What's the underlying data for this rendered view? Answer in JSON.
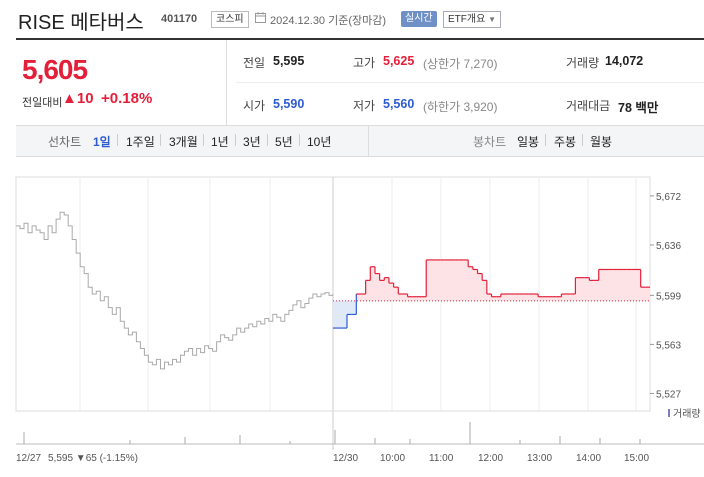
{
  "header": {
    "name": "RISE 메타버스",
    "code": "401170",
    "market": "코스피",
    "date_label": "2024.12.30 기준(장마감)",
    "realtime_label": "실시간",
    "etf_label": "ETF개요"
  },
  "quote": {
    "price": "5,605",
    "change_label": "전일대비",
    "change": "10",
    "change_pct": "+0.18%",
    "prev_close_label": "전일",
    "prev_close": "5,595",
    "high_label": "고가",
    "high": "5,625",
    "upper_limit": "(상한가 7,270)",
    "volume_label": "거래량",
    "volume": "14,072",
    "open_label": "시가",
    "open": "5,590",
    "low_label": "저가",
    "low": "5,560",
    "lower_limit": "(하한가 3,920)",
    "amount_label": "거래대금",
    "amount": "78 백만"
  },
  "toolbar": {
    "line_label": "선차트",
    "periods": [
      "1일",
      "1주일",
      "3개월",
      "1년",
      "3년",
      "5년",
      "10년"
    ],
    "candle_label": "봉차트",
    "candles": [
      "일봉",
      "주봉",
      "월봉"
    ]
  },
  "colors": {
    "up": "#e3203a",
    "down": "#2d5bd0",
    "prev": "#aaaaaa"
  },
  "chart_data": {
    "type": "line",
    "ylim": [
      5520,
      5680
    ],
    "yticks": [
      "5,672",
      "5,636",
      "5,599",
      "5,563",
      "5,527"
    ],
    "ytick_values": [
      5672,
      5636,
      5599,
      5563,
      5527
    ],
    "baseline": 5595,
    "x_labels": [
      "12/27",
      "12/30",
      "10:00",
      "11:00",
      "12:00",
      "13:00",
      "14:00",
      "15:00"
    ],
    "prev_day_label": "12/27",
    "prev_day_summary": "5,595 ▼65 (-1.15%)",
    "volume_label": "거래량",
    "prev_series": [
      5650,
      5648,
      5652,
      5645,
      5650,
      5647,
      5645,
      5640,
      5650,
      5645,
      5655,
      5660,
      5658,
      5650,
      5640,
      5630,
      5620,
      5615,
      5605,
      5600,
      5602,
      5595,
      5598,
      5590,
      5585,
      5590,
      5580,
      5575,
      5570,
      5572,
      5565,
      5560,
      5555,
      5550,
      5548,
      5552,
      5545,
      5550,
      5548,
      5552,
      5550,
      5555,
      5558,
      5560,
      5555,
      5560,
      5557,
      5562,
      5560,
      5558,
      5565,
      5570,
      5568,
      5566,
      5570,
      5575,
      5572,
      5575,
      5578,
      5576,
      5580,
      5578,
      5582,
      5580,
      5585,
      5583,
      5580,
      5585,
      5588,
      5592,
      5595,
      5590,
      5593,
      5597,
      5600,
      5598,
      5600,
      5601,
      5599,
      5600
    ],
    "today_series": [
      5575,
      5575,
      5575,
      5585,
      5585,
      5600,
      5600,
      5610,
      5620,
      5615,
      5610,
      5612,
      5608,
      5605,
      5600,
      5600,
      5598,
      5598,
      5598,
      5598,
      5625,
      5625,
      5625,
      5625,
      5625,
      5625,
      5625,
      5625,
      5625,
      5620,
      5618,
      5615,
      5610,
      5600,
      5598,
      5598,
      5600,
      5600,
      5600,
      5600,
      5600,
      5600,
      5600,
      5600,
      5598,
      5598,
      5598,
      5598,
      5598,
      5600,
      5600,
      5600,
      5612,
      5612,
      5612,
      5610,
      5610,
      5618,
      5618,
      5618,
      5618,
      5618,
      5618,
      5618,
      5618,
      5618,
      5605,
      5605,
      5605
    ]
  }
}
